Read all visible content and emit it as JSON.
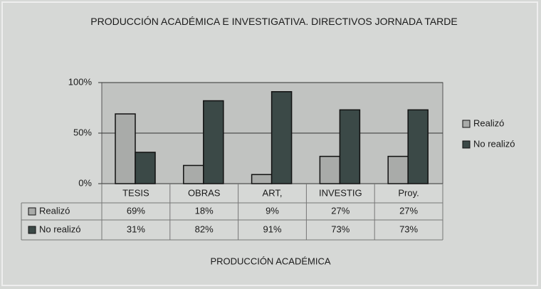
{
  "chart_data": {
    "type": "bar",
    "title": "PRODUCCIÓN ACADÉMICA E INVESTIGATIVA. DIRECTIVOS JORNADA TARDE",
    "x_label": "PRODUCCIÓN ACADÉMICA",
    "categories": [
      "TESIS",
      "OBRAS",
      "ART,",
      "INVESTIG",
      "Proy."
    ],
    "series": [
      {
        "name": "Realizó",
        "color": "#a9aba9",
        "values": [
          69,
          18,
          9,
          27,
          27
        ],
        "value_labels": [
          "69%",
          "18%",
          "9%",
          "27%",
          "27%"
        ]
      },
      {
        "name": "No realizó",
        "color": "#3b4947",
        "values": [
          31,
          82,
          91,
          73,
          73
        ],
        "value_labels": [
          "31%",
          "82%",
          "91%",
          "73%",
          "73%"
        ]
      }
    ],
    "ylim": [
      0,
      100
    ],
    "yticks": [
      {
        "value": 0,
        "label": "0%"
      },
      {
        "value": 50,
        "label": "50%"
      },
      {
        "value": 100,
        "label": "100%"
      }
    ],
    "grid": true,
    "legend": "right"
  }
}
